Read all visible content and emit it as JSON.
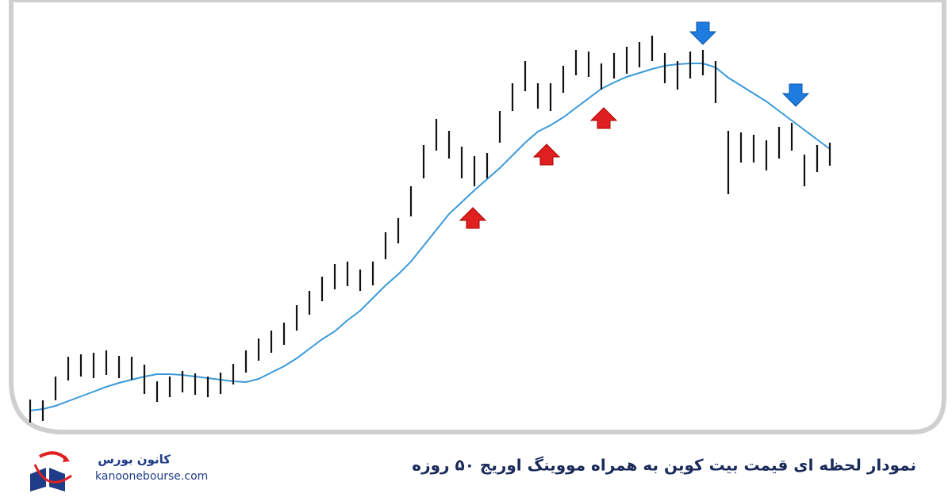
{
  "chart_data": {
    "type": "hilo",
    "caption": "نمودار لحظه ای قیمت بیت کوین  به همراه مووینگ اوریج ۵۰ روزه",
    "color": "#111111",
    "high": [
      41,
      40,
      70,
      95,
      98,
      100,
      103,
      96,
      95,
      85,
      64,
      70,
      77,
      74,
      70,
      75,
      86,
      103,
      118,
      128,
      138,
      160,
      178,
      196,
      212,
      215,
      205,
      215,
      252,
      270,
      310,
      362,
      395,
      380,
      360,
      348,
      352,
      405,
      440,
      468,
      440,
      440,
      462,
      482,
      480,
      465,
      478,
      486,
      492,
      500,
      478,
      468,
      480,
      482,
      468,
      380,
      378,
      375,
      368,
      385,
      390,
      350,
      362,
      365
    ],
    "low": [
      12,
      14,
      40,
      65,
      70,
      68,
      72,
      68,
      66,
      48,
      38,
      44,
      50,
      47,
      44,
      48,
      60,
      75,
      90,
      100,
      110,
      128,
      148,
      165,
      180,
      184,
      178,
      185,
      218,
      238,
      272,
      320,
      355,
      345,
      320,
      310,
      320,
      365,
      405,
      430,
      408,
      405,
      428,
      450,
      448,
      432,
      446,
      452,
      460,
      468,
      440,
      432,
      446,
      450,
      415,
      300,
      340,
      340,
      330,
      345,
      355,
      310,
      328,
      336
    ],
    "moving_average": {
      "color": "#3a9ad9",
      "values": [
        27,
        29,
        33,
        39,
        45,
        51,
        57,
        62,
        66,
        70,
        73,
        73,
        72,
        70,
        68,
        66,
        64,
        63,
        67,
        75,
        83,
        93,
        105,
        117,
        127,
        141,
        153,
        169,
        185,
        199,
        215,
        235,
        255,
        275,
        290,
        305,
        319,
        333,
        349,
        365,
        379,
        387,
        397,
        409,
        421,
        433,
        441,
        448,
        453,
        458,
        462,
        464,
        465,
        465,
        460,
        447,
        437,
        427,
        417,
        405,
        393,
        381,
        369,
        357
      ]
    }
  },
  "logo": {
    "name": "کانون بورس",
    "site": "kanoonebourse.com"
  }
}
